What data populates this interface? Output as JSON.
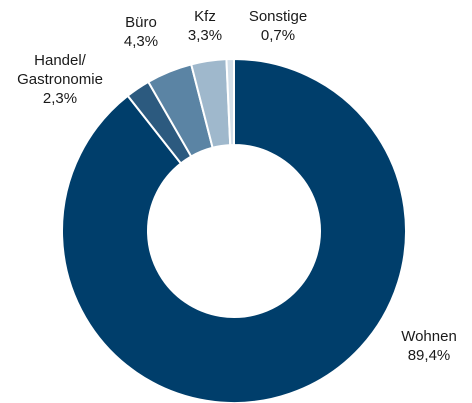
{
  "chart_data": {
    "type": "donut",
    "categories": [
      "Wohnen",
      "Handel/ Gastronomie",
      "Büro",
      "Kfz",
      "Sonstige"
    ],
    "values": [
      89.4,
      2.3,
      4.3,
      3.3,
      0.7
    ],
    "value_labels": [
      "89,4%",
      "2,3%",
      "4,3%",
      "3,3%",
      "0,7%"
    ],
    "colors": [
      "#003e6b",
      "#2c5a7f",
      "#5b84a4",
      "#9fb8cc",
      "#d3dfe9"
    ]
  }
}
